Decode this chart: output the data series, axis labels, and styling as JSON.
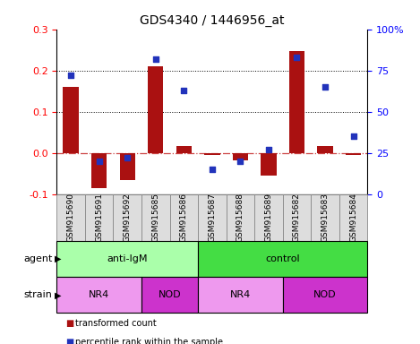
{
  "title": "GDS4340 / 1446956_at",
  "samples": [
    "GSM915690",
    "GSM915691",
    "GSM915692",
    "GSM915685",
    "GSM915686",
    "GSM915687",
    "GSM915688",
    "GSM915689",
    "GSM915682",
    "GSM915683",
    "GSM915684"
  ],
  "transformed_count": [
    0.16,
    -0.085,
    -0.065,
    0.21,
    0.018,
    -0.005,
    -0.018,
    -0.055,
    0.248,
    0.018,
    -0.005
  ],
  "percentile_rank": [
    72,
    20,
    22,
    82,
    63,
    15,
    20,
    27,
    83,
    65,
    35
  ],
  "ylim_left": [
    -0.1,
    0.3
  ],
  "ylim_right": [
    0,
    100
  ],
  "yticks_left": [
    -0.1,
    0.0,
    0.1,
    0.2,
    0.3
  ],
  "yticks_right": [
    0,
    25,
    50,
    75,
    100
  ],
  "ytick_labels_right": [
    "0",
    "25",
    "50",
    "75",
    "100%"
  ],
  "hlines_dotted": [
    0.1,
    0.2
  ],
  "bar_color": "#aa1111",
  "dot_color": "#2233bb",
  "dashed_line_color": "#cc4444",
  "agent_groups": [
    {
      "label": "anti-IgM",
      "start": 0,
      "end": 5,
      "color": "#aaffaa"
    },
    {
      "label": "control",
      "start": 5,
      "end": 11,
      "color": "#44dd44"
    }
  ],
  "strain_groups": [
    {
      "label": "NR4",
      "start": 0,
      "end": 3,
      "color": "#ee99ee"
    },
    {
      "label": "NOD",
      "start": 3,
      "end": 5,
      "color": "#cc33cc"
    },
    {
      "label": "NR4",
      "start": 5,
      "end": 8,
      "color": "#ee99ee"
    },
    {
      "label": "NOD",
      "start": 8,
      "end": 11,
      "color": "#cc33cc"
    }
  ],
  "legend_items": [
    {
      "label": "transformed count",
      "color": "#aa1111"
    },
    {
      "label": "percentile rank within the sample",
      "color": "#2233bb"
    }
  ]
}
